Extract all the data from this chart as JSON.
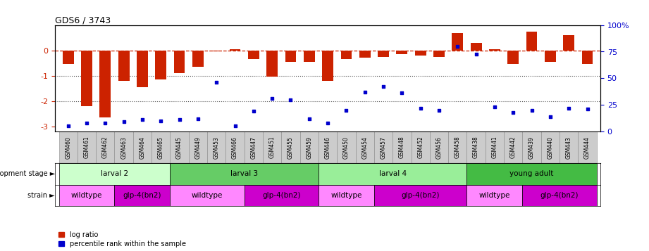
{
  "title": "GDS6 / 3743",
  "samples": [
    "GSM460",
    "GSM461",
    "GSM462",
    "GSM463",
    "GSM464",
    "GSM465",
    "GSM445",
    "GSM449",
    "GSM453",
    "GSM466",
    "GSM447",
    "GSM451",
    "GSM455",
    "GSM459",
    "GSM446",
    "GSM450",
    "GSM454",
    "GSM457",
    "GSM448",
    "GSM452",
    "GSM456",
    "GSM458",
    "GSM438",
    "GSM441",
    "GSM442",
    "GSM439",
    "GSM440",
    "GSM443",
    "GSM444"
  ],
  "log_ratio": [
    -0.55,
    -2.2,
    -2.65,
    -1.2,
    -1.45,
    -1.15,
    -0.9,
    -0.65,
    -0.05,
    0.05,
    -0.35,
    -1.05,
    -0.45,
    -0.45,
    -1.2,
    -0.35,
    -0.3,
    -0.25,
    -0.15,
    -0.2,
    -0.25,
    0.7,
    0.3,
    0.05,
    -0.55,
    0.75,
    -0.45,
    0.6,
    -0.55
  ],
  "percentile": [
    5,
    8,
    8,
    9,
    11,
    10,
    11,
    12,
    46,
    5,
    19,
    31,
    30,
    12,
    8,
    20,
    37,
    42,
    36,
    22,
    20,
    80,
    73,
    23,
    18,
    20,
    14,
    22,
    21
  ],
  "dev_stages": [
    {
      "label": "larval 2",
      "start": 0,
      "end": 6,
      "color": "#ccffcc"
    },
    {
      "label": "larval 3",
      "start": 6,
      "end": 14,
      "color": "#66cc66"
    },
    {
      "label": "larval 4",
      "start": 14,
      "end": 22,
      "color": "#99ee99"
    },
    {
      "label": "young adult",
      "start": 22,
      "end": 29,
      "color": "#44bb44"
    }
  ],
  "strains": [
    {
      "label": "wildtype",
      "start": 0,
      "end": 3,
      "color": "#ff88ff"
    },
    {
      "label": "glp-4(bn2)",
      "start": 3,
      "end": 6,
      "color": "#cc00cc"
    },
    {
      "label": "wildtype",
      "start": 6,
      "end": 10,
      "color": "#ff88ff"
    },
    {
      "label": "glp-4(bn2)",
      "start": 10,
      "end": 14,
      "color": "#cc00cc"
    },
    {
      "label": "wildtype",
      "start": 14,
      "end": 17,
      "color": "#ff88ff"
    },
    {
      "label": "glp-4(bn2)",
      "start": 17,
      "end": 22,
      "color": "#cc00cc"
    },
    {
      "label": "wildtype",
      "start": 22,
      "end": 25,
      "color": "#ff88ff"
    },
    {
      "label": "glp-4(bn2)",
      "start": 25,
      "end": 29,
      "color": "#cc00cc"
    }
  ],
  "ylim_left": [
    -3.2,
    1.0
  ],
  "ylim_right": [
    0,
    100
  ],
  "bar_color": "#cc2200",
  "scatter_color": "#0000cc",
  "hline_color": "#cc2200",
  "dotted_color": "#555555",
  "ylabel_left_color": "#cc2200",
  "ylabel_right_color": "#0000cc",
  "gsm_box_color": "#cccccc",
  "gsm_box_edgecolor": "#888888"
}
